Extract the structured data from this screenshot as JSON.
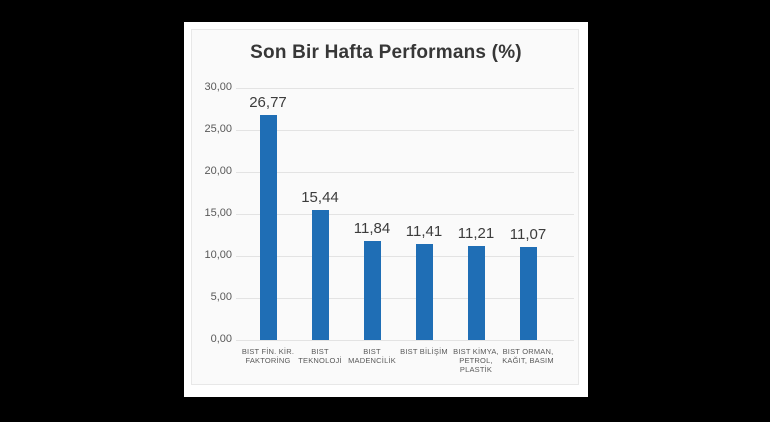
{
  "chart_data": {
    "type": "bar",
    "title": "Son Bir Hafta Performans (%)",
    "categories": [
      "BIST FİN. KİR. FAKTORİNG",
      "BIST TEKNOLOJİ",
      "BIST MADENCİLİK",
      "BIST BİLİŞİM",
      "BIST KİMYA, PETROL, PLASTİK",
      "BIST ORMAN, KAĞIT, BASIM"
    ],
    "category_lines": [
      [
        "BIST FİN. KİR.",
        "FAKTORİNG"
      ],
      [
        "BIST",
        "TEKNOLOJİ"
      ],
      [
        "BIST",
        "MADENCİLİK"
      ],
      [
        "BIST BİLİŞİM"
      ],
      [
        "BIST KİMYA,",
        "PETROL,",
        "PLASTİK"
      ],
      [
        "BIST ORMAN,",
        "KAĞIT, BASIM"
      ]
    ],
    "values": [
      26.77,
      15.44,
      11.84,
      11.41,
      11.21,
      11.07
    ],
    "value_labels": [
      "26,77",
      "15,44",
      "11,84",
      "11,41",
      "11,21",
      "11,07"
    ],
    "xlabel": "",
    "ylabel": "",
    "ylim": [
      0,
      30
    ],
    "ytick_values": [
      0,
      5,
      10,
      15,
      20,
      25,
      30
    ],
    "ytick_labels": [
      "0,00",
      "5,00",
      "10,00",
      "15,00",
      "20,00",
      "25,00",
      "30,00"
    ],
    "grid": true,
    "legend_position": "none",
    "bar_color": "#1f6eb5"
  }
}
